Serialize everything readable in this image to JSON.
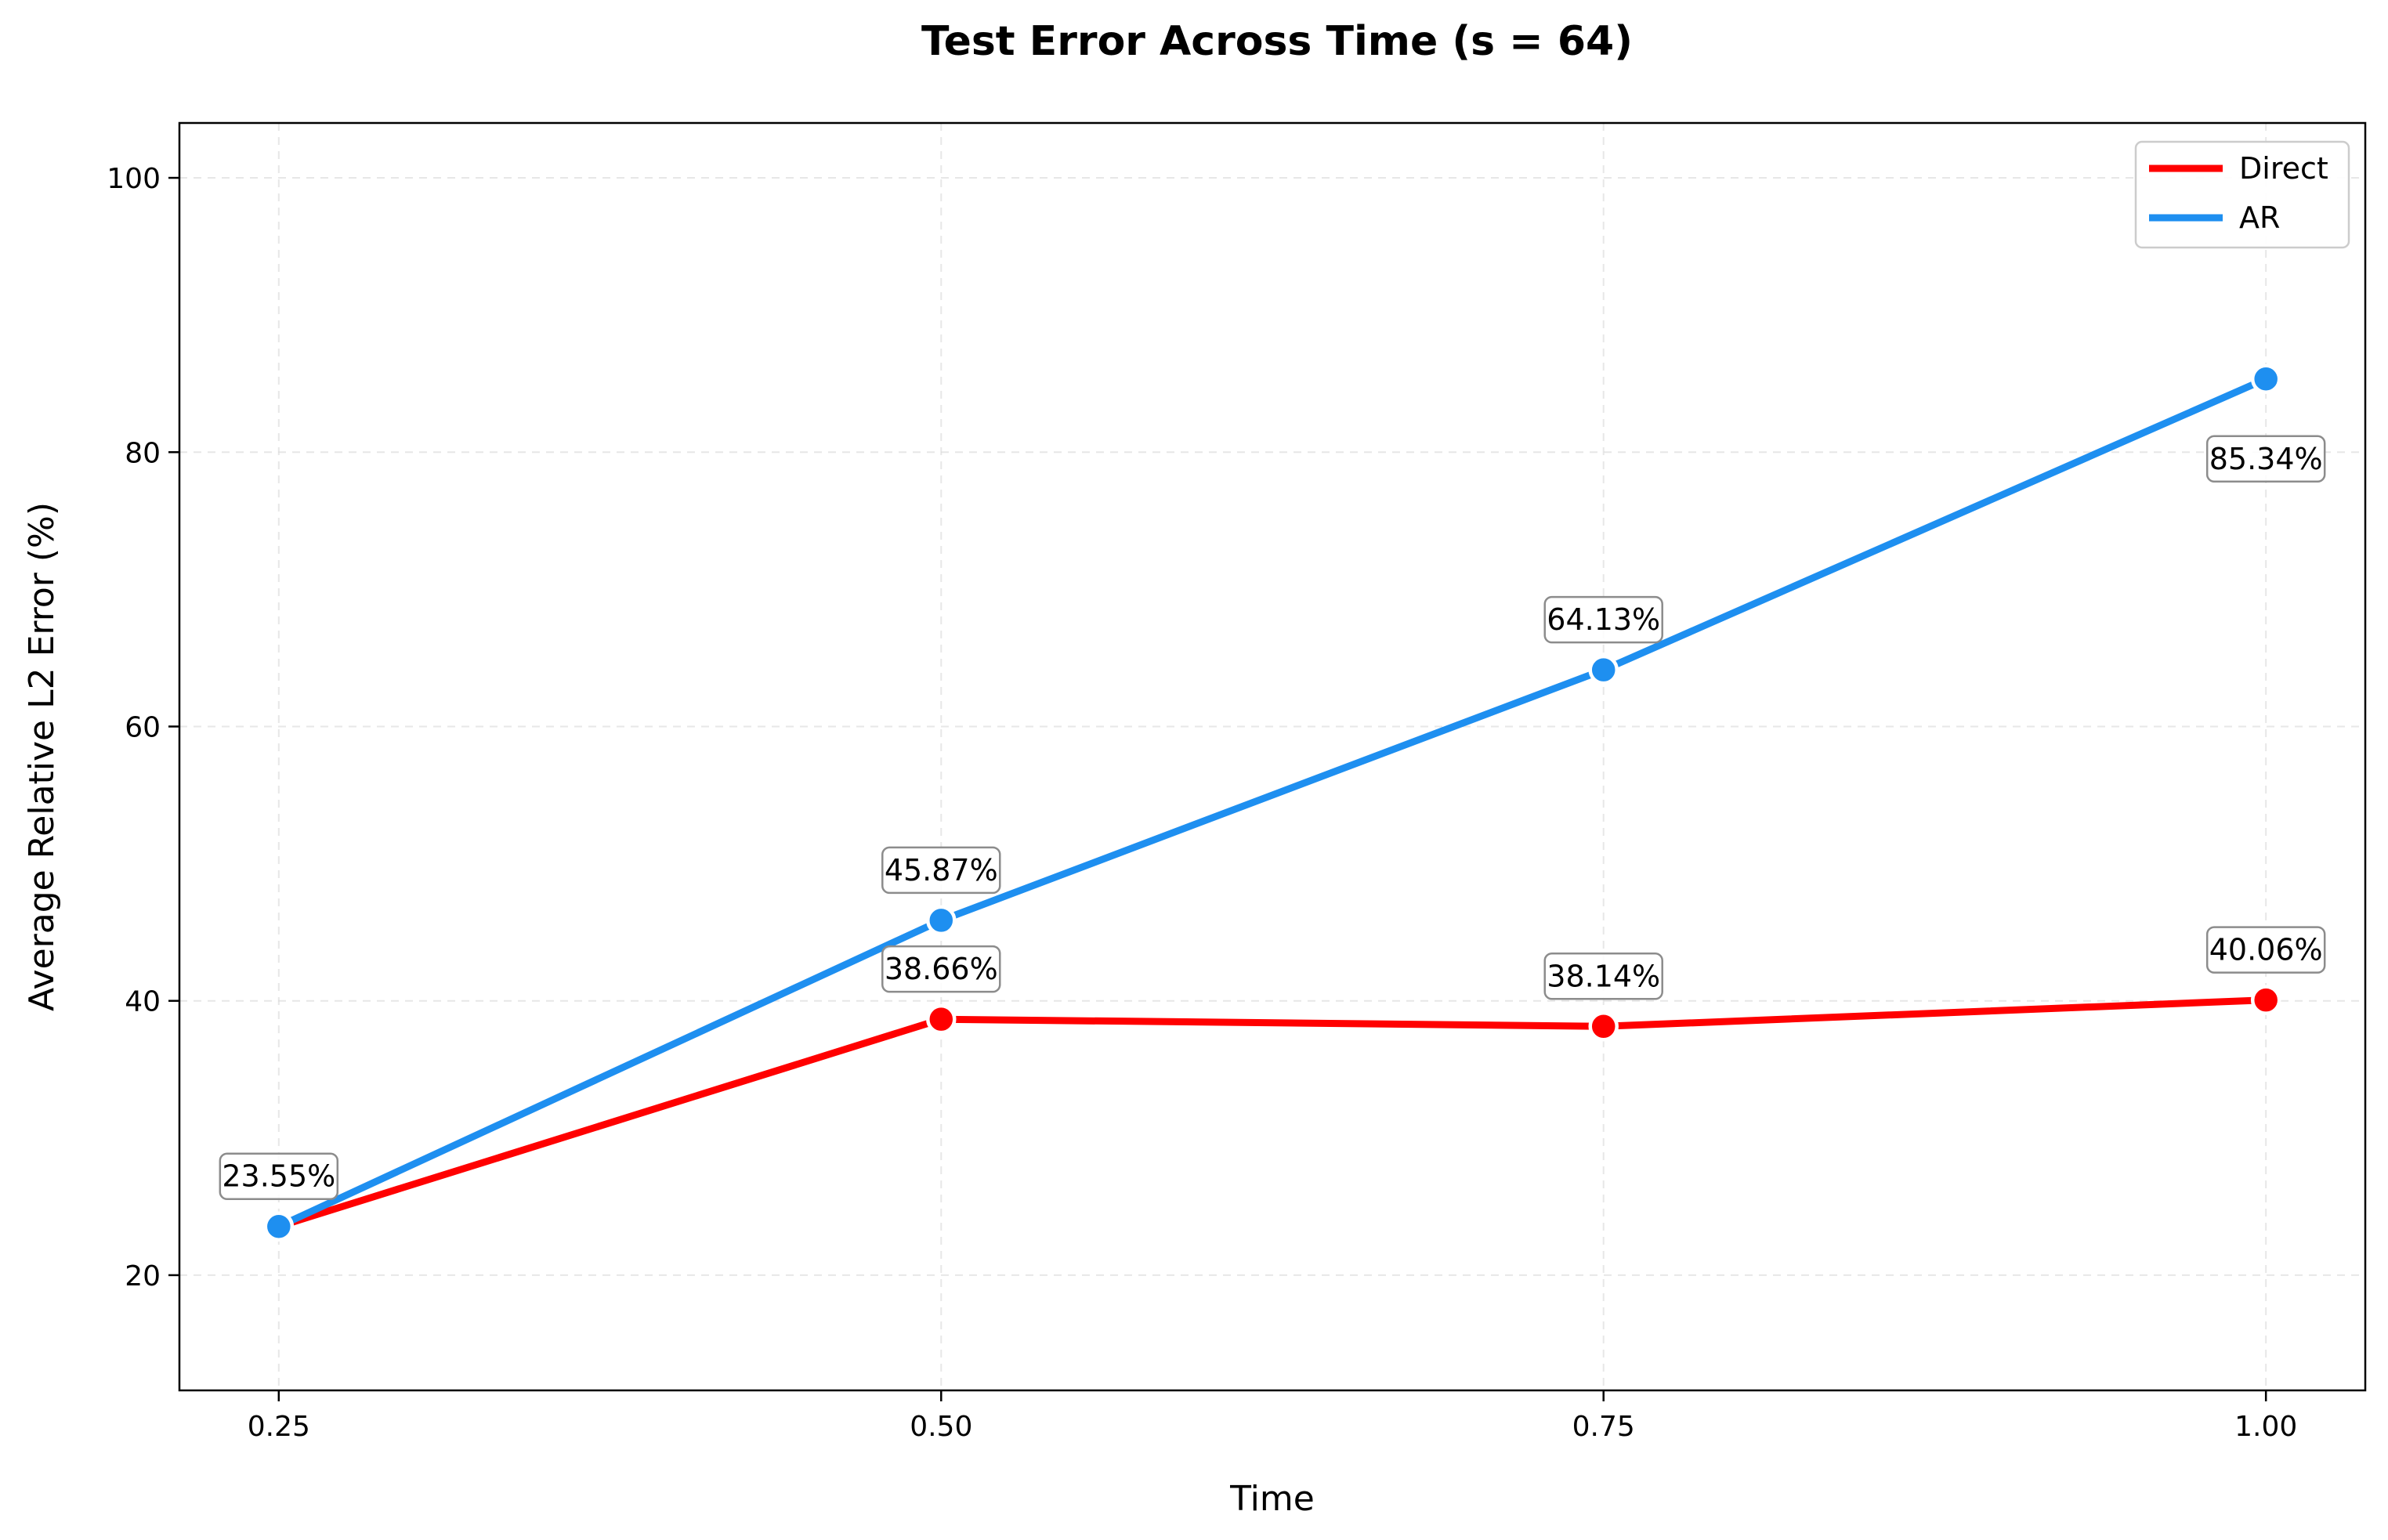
{
  "chart_data": {
    "type": "line",
    "title": "Test Error Across Time (s = 64)",
    "xlabel": "Time",
    "ylabel": "Average Relative L2 Error (%)",
    "x": [
      0.25,
      0.5,
      0.75,
      1.0
    ],
    "x_tick_labels": [
      "0.25",
      "0.50",
      "0.75",
      "1.00"
    ],
    "y_ticks": [
      20,
      40,
      60,
      80,
      100
    ],
    "y_tick_labels": [
      "20",
      "40",
      "60",
      "80",
      "100"
    ],
    "xlim": [
      0.2125,
      1.0375
    ],
    "ylim": [
      11.6,
      104.0
    ],
    "grid": true,
    "legend_position": "top-right",
    "series": [
      {
        "name": "Direct",
        "color": "#ff0000",
        "values": [
          23.55,
          38.66,
          38.14,
          40.06
        ],
        "labels": [
          "",
          "38.66%",
          "38.14%",
          "40.06%"
        ],
        "label_placement": [
          "above",
          "above",
          "above",
          "above"
        ]
      },
      {
        "name": "AR",
        "color": "#1e8ff0",
        "values": [
          23.55,
          45.87,
          64.13,
          85.34
        ],
        "labels": [
          "23.55%",
          "45.87%",
          "64.13%",
          "85.34%"
        ],
        "label_placement": [
          "above",
          "above",
          "above",
          "below"
        ]
      }
    ]
  }
}
